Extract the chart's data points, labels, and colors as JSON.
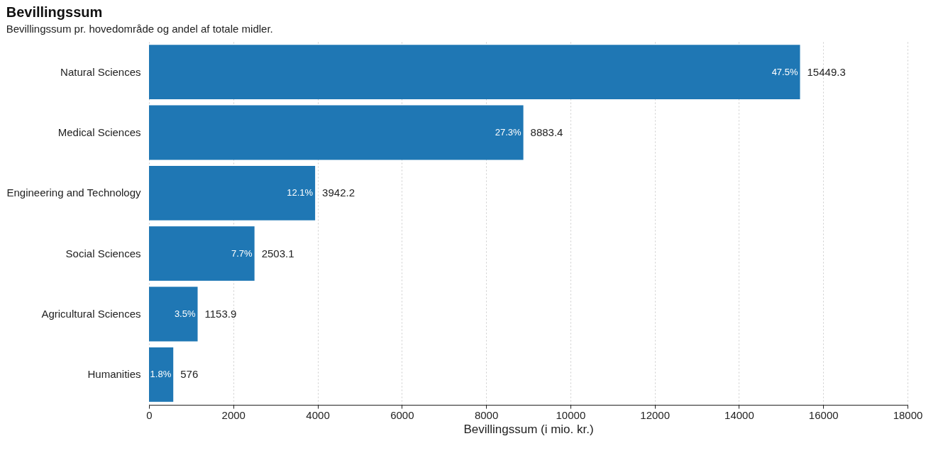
{
  "chart_data": {
    "type": "bar",
    "orientation": "horizontal",
    "title": "Bevillingssum",
    "subtitle": "Bevillingssum pr. hovedområde og andel af totale midler.",
    "xlabel": "Bevillingssum (i mio. kr.)",
    "categories": [
      "Natural Sciences",
      "Medical Sciences",
      "Engineering and Technology",
      "Social Sciences",
      "Agricultural Sciences",
      "Humanities"
    ],
    "values": [
      15449.3,
      8883.4,
      3942.2,
      2503.1,
      1153.9,
      576
    ],
    "color": "#1f77b4",
    "data_labels": true,
    "xlim": [
      0,
      18000
    ],
    "xticks": [
      0,
      2000,
      4000,
      6000,
      8000,
      10000,
      12000,
      14000,
      16000,
      18000
    ],
    "grid": "x",
    "annotations": [
      {
        "text": "47.5%",
        "x": 15449.3,
        "y": "Natural Sciences"
      },
      {
        "text": "27.3%",
        "x": 8883.4,
        "y": "Medical Sciences"
      },
      {
        "text": "12.1%",
        "x": 3942.2,
        "y": "Engineering and Technology"
      },
      {
        "text": "7.7%",
        "x": 2503.1,
        "y": "Social Sciences"
      },
      {
        "text": "3.5%",
        "x": 1153.9,
        "y": "Agricultural Sciences"
      },
      {
        "text": "1.8%",
        "x": 576,
        "y": "Humanities"
      }
    ]
  }
}
